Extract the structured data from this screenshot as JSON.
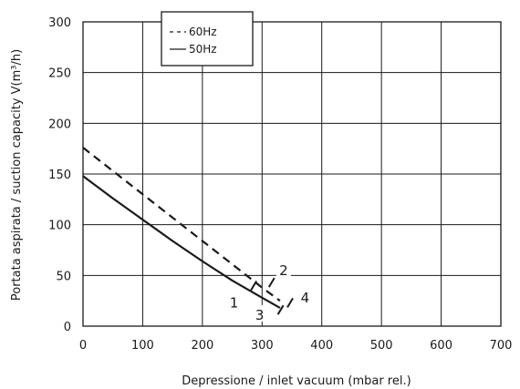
{
  "chart_data": {
    "type": "line",
    "xlabel": "Depressione / inlet vacuum (mbar rel.)",
    "ylabel": "Portata aspirata / suction capacity V(m³/h)",
    "xlim": [
      0,
      700
    ],
    "ylim": [
      0,
      300
    ],
    "x_ticks": [
      0,
      100,
      200,
      300,
      400,
      500,
      600,
      700
    ],
    "y_ticks": [
      0,
      50,
      100,
      150,
      200,
      250,
      300
    ],
    "x_tick_labels": [
      "0",
      "100",
      "200",
      "300",
      "400",
      "500",
      "600",
      "700"
    ],
    "y_tick_labels": [
      "0",
      "50",
      "100",
      "150",
      "200",
      "250",
      "300"
    ],
    "grid": true,
    "legend_position": "top-left",
    "colors": {
      "line": "#1a1a1a",
      "grid": "#1a1a1a"
    },
    "series": [
      {
        "name": "60Hz",
        "style": "dashed",
        "x": [
          0,
          50,
          100,
          150,
          200,
          250,
          300,
          330
        ],
        "y": [
          176,
          153,
          130,
          107,
          84,
          61,
          38,
          25
        ]
      },
      {
        "name": "50Hz",
        "style": "solid",
        "x": [
          0,
          50,
          100,
          150,
          200,
          250,
          300,
          330
        ],
        "y": [
          148,
          126,
          105,
          84,
          64,
          45,
          28,
          18
        ]
      }
    ],
    "annotations": [
      {
        "text": "1",
        "x": 253,
        "y": 22
      },
      {
        "text": "2",
        "x": 336,
        "y": 54
      },
      {
        "text": "3",
        "x": 296,
        "y": 10
      },
      {
        "text": "4",
        "x": 372,
        "y": 27
      }
    ],
    "markers": [
      {
        "x": 286,
        "y": 40
      },
      {
        "x": 316,
        "y": 43
      },
      {
        "x": 331,
        "y": 16
      },
      {
        "x": 347,
        "y": 23
      }
    ]
  }
}
